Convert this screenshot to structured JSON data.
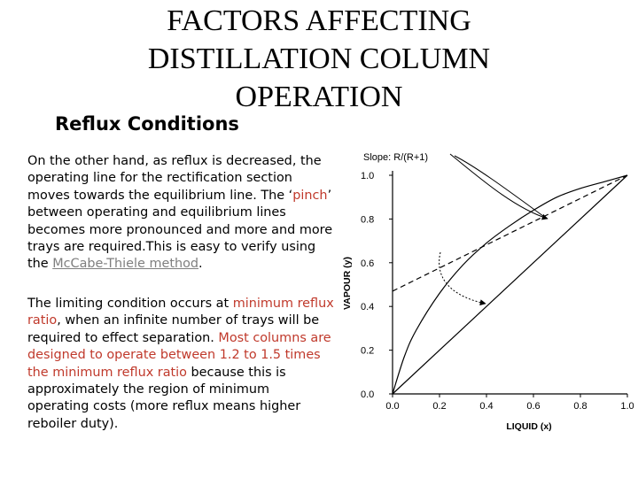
{
  "title_lines": [
    "FACTORS AFFECTING",
    "DISTILLATION COLUMN",
    "OPERATION"
  ],
  "subtitle": "Reflux Conditions",
  "para1": {
    "t1": "On the other hand, as reflux is decreased, the operating line for the rectification section moves towards the equilibrium line. The ‘",
    "pinch": "pinch",
    "t2": "’ between operating and equilibrium lines becomes more pronounced and more and more trays are required.This is easy to verify using the ",
    "link": "McCabe-Thiele method",
    "t3": "."
  },
  "para2": {
    "t1": "The limiting condition occurs at ",
    "red1": "minimum reflux ratio",
    "t2": ", when an infinite number of trays will be required to effect separation. ",
    "red2": "Most columns are designed to operate between 1.2 to 1.5 times the minimum reflux ratio",
    "t3": " because this is approximately the region of minimum operating costs (more reflux means higher reboiler duty)."
  },
  "chart_data": {
    "type": "line",
    "xlabel": "LIQUID (x)",
    "ylabel": "VAPOUR (y)",
    "xlim": [
      0,
      1
    ],
    "ylim": [
      0,
      1
    ],
    "xticks": [
      "0.0",
      "0.2",
      "0.4",
      "0.6",
      "0.8",
      "1.0"
    ],
    "yticks": [
      "0.0",
      "0.2",
      "0.4",
      "0.6",
      "0.8",
      "1.0"
    ],
    "annotation": "Slope: R/(R+1)",
    "series": [
      {
        "style": "solid",
        "x": [
          0,
          1
        ],
        "y": [
          0,
          1
        ]
      },
      {
        "style": "solid",
        "x": [
          0,
          0.05,
          0.1,
          0.2,
          0.3,
          0.4,
          0.5,
          0.6,
          0.7,
          0.8,
          0.9,
          1.0
        ],
        "y": [
          0,
          0.17,
          0.29,
          0.46,
          0.59,
          0.69,
          0.77,
          0.84,
          0.9,
          0.94,
          0.97,
          1.0
        ]
      },
      {
        "style": "dashed",
        "x": [
          0,
          1
        ],
        "y": [
          0.47,
          1.0
        ]
      }
    ]
  }
}
